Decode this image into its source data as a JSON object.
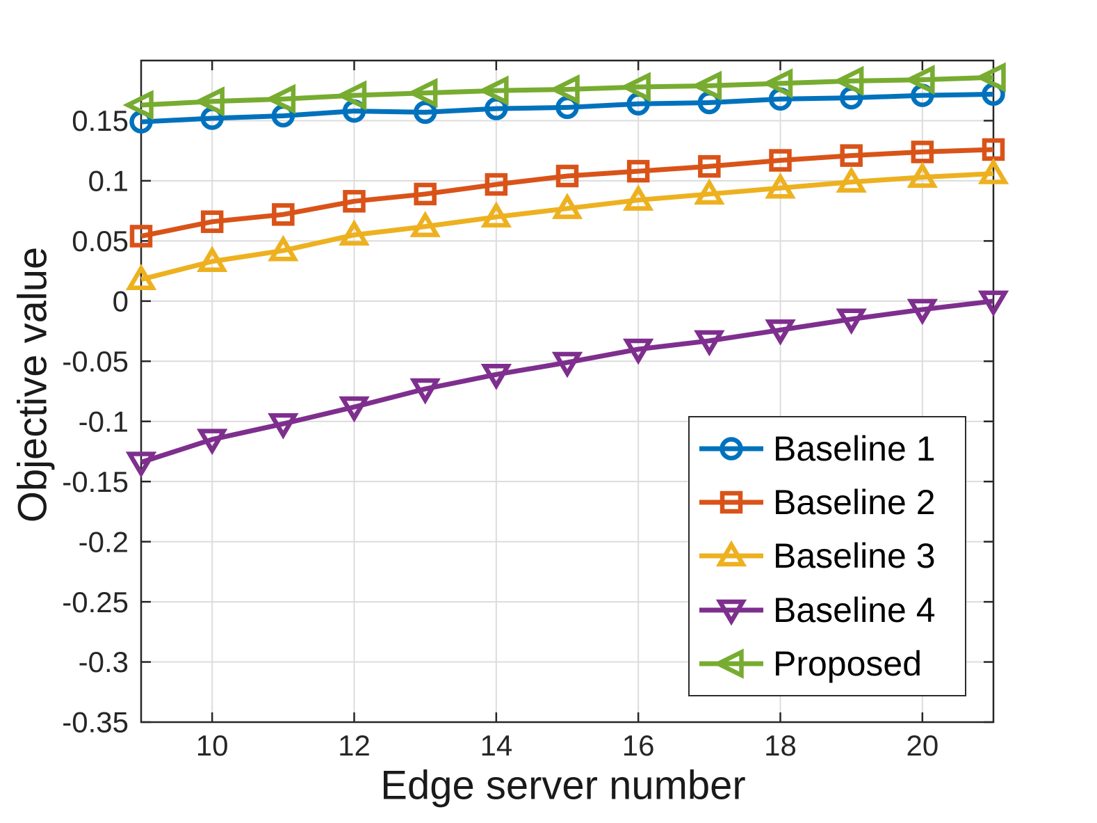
{
  "figure": {
    "background": "#ffffff",
    "axis_color": "#262626",
    "grid_color": "#dcdcdc"
  },
  "chart_data": {
    "type": "line",
    "title": "",
    "xlabel": "Edge server number",
    "ylabel": "Objective value",
    "xlim": [
      9,
      21
    ],
    "ylim": [
      -0.35,
      0.2
    ],
    "grid": true,
    "legend_location": "lower-right-inside",
    "xticks": {
      "values": [
        10,
        12,
        14,
        16,
        18,
        20
      ],
      "labels": [
        "10",
        "12",
        "14",
        "16",
        "18",
        "20"
      ]
    },
    "yticks": {
      "values": [
        -0.35,
        -0.3,
        -0.25,
        -0.2,
        -0.15,
        -0.1,
        -0.05,
        0,
        0.05,
        0.1,
        0.15
      ],
      "labels": [
        "-0.35",
        "-0.3",
        "-0.25",
        "-0.2",
        "-0.15",
        "-0.1",
        "-0.05",
        "0",
        "0.05",
        "0.1",
        "0.15"
      ]
    },
    "x": [
      9,
      10,
      11,
      12,
      13,
      14,
      15,
      16,
      17,
      18,
      19,
      20,
      21
    ],
    "series": [
      {
        "name": "Baseline 1",
        "color": "#0072BD",
        "marker": "circle",
        "values": [
          0.149,
          0.152,
          0.154,
          0.158,
          0.157,
          0.16,
          0.161,
          0.164,
          0.165,
          0.168,
          0.169,
          0.171,
          0.172
        ]
      },
      {
        "name": "Baseline 2",
        "color": "#D95319",
        "marker": "square",
        "values": [
          0.054,
          0.066,
          0.072,
          0.083,
          0.089,
          0.097,
          0.104,
          0.108,
          0.112,
          0.117,
          0.121,
          0.124,
          0.126
        ]
      },
      {
        "name": "Baseline 3",
        "color": "#EDB120",
        "marker": "triangle-up",
        "values": [
          0.018,
          0.033,
          0.042,
          0.055,
          0.062,
          0.07,
          0.077,
          0.084,
          0.089,
          0.094,
          0.099,
          0.103,
          0.106
        ]
      },
      {
        "name": "Baseline 4",
        "color": "#7E2F8E",
        "marker": "triangle-down",
        "values": [
          -0.134,
          -0.115,
          -0.102,
          -0.088,
          -0.073,
          -0.061,
          -0.051,
          -0.04,
          -0.033,
          -0.024,
          -0.015,
          -0.007,
          0.0
        ]
      },
      {
        "name": "Proposed",
        "color": "#77AC30",
        "marker": "triangle-left",
        "values": [
          0.163,
          0.166,
          0.168,
          0.171,
          0.173,
          0.175,
          0.176,
          0.178,
          0.179,
          0.181,
          0.183,
          0.184,
          0.186
        ]
      }
    ]
  }
}
